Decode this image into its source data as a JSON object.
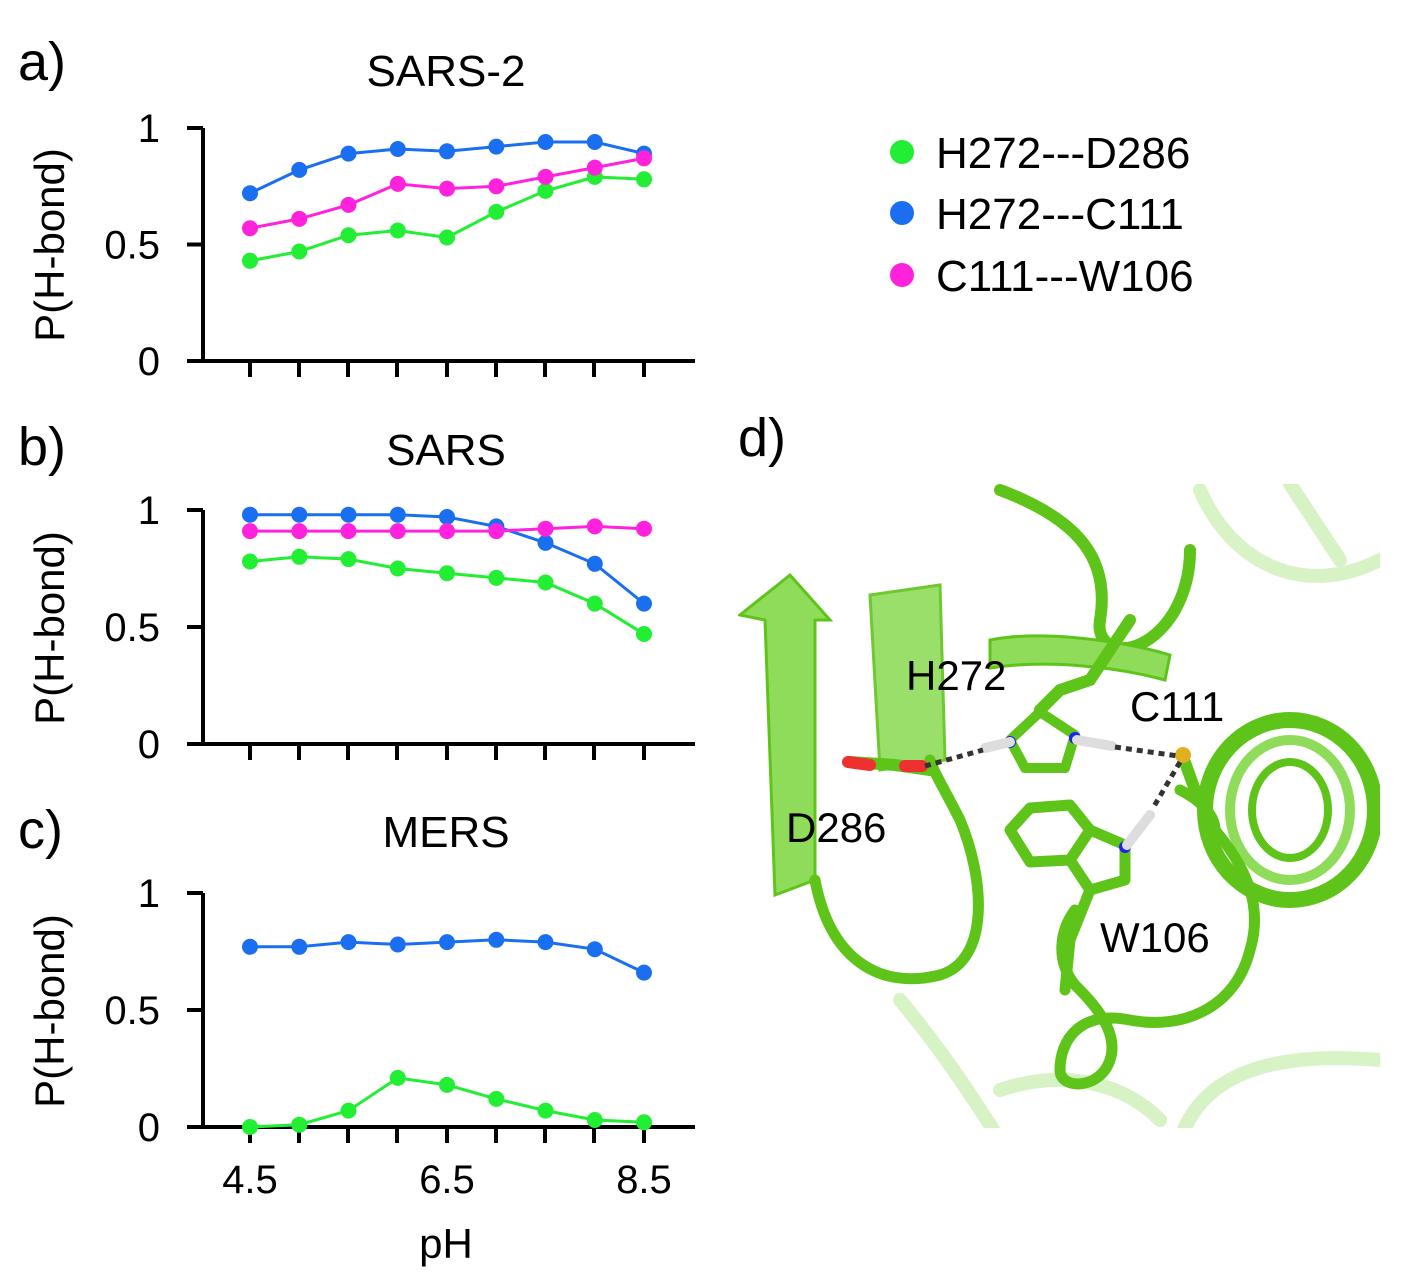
{
  "chart_data": [
    {
      "panel": "a)",
      "type": "line",
      "title": "SARS-2",
      "ylabel": "P(H-bond)",
      "xlabel": "",
      "ylim": [
        0,
        1
      ],
      "yticks": [
        0,
        0.5,
        1
      ],
      "ytick_labels": [
        "0",
        "0.5",
        "1"
      ],
      "xlim": [
        4.5,
        8.5
      ],
      "x": [
        4.5,
        5.0,
        5.5,
        6.0,
        6.5,
        7.0,
        7.5,
        8.0,
        8.5
      ],
      "series": [
        {
          "key": "hd",
          "values": [
            0.43,
            0.47,
            0.54,
            0.56,
            0.53,
            0.64,
            0.73,
            0.79,
            0.78
          ]
        },
        {
          "key": "hc",
          "values": [
            0.72,
            0.82,
            0.89,
            0.91,
            0.9,
            0.92,
            0.94,
            0.94,
            0.89
          ]
        },
        {
          "key": "cw",
          "values": [
            0.57,
            0.61,
            0.67,
            0.76,
            0.74,
            0.75,
            0.79,
            0.83,
            0.87
          ]
        }
      ]
    },
    {
      "panel": "b)",
      "type": "line",
      "title": "SARS",
      "ylabel": "P(H-bond)",
      "xlabel": "",
      "ylim": [
        0,
        1
      ],
      "yticks": [
        0,
        0.5,
        1
      ],
      "ytick_labels": [
        "0",
        "0.5",
        "1"
      ],
      "xlim": [
        4.5,
        8.5
      ],
      "x": [
        4.5,
        5.0,
        5.5,
        6.0,
        6.5,
        7.0,
        7.5,
        8.0,
        8.5
      ],
      "series": [
        {
          "key": "hd",
          "values": [
            0.78,
            0.8,
            0.79,
            0.75,
            0.73,
            0.71,
            0.69,
            0.6,
            0.47
          ]
        },
        {
          "key": "hc",
          "values": [
            0.98,
            0.98,
            0.98,
            0.98,
            0.97,
            0.93,
            0.86,
            0.77,
            0.6
          ]
        },
        {
          "key": "cw",
          "values": [
            0.91,
            0.91,
            0.91,
            0.91,
            0.91,
            0.91,
            0.92,
            0.93,
            0.92
          ]
        }
      ]
    },
    {
      "panel": "c)",
      "type": "line",
      "title": "MERS",
      "ylabel": "P(H-bond)",
      "xlabel": "pH",
      "ylim": [
        0,
        1
      ],
      "yticks": [
        0,
        0.5,
        1
      ],
      "ytick_labels": [
        "0",
        "0.5",
        "1"
      ],
      "xlim": [
        4.5,
        8.5
      ],
      "x": [
        4.5,
        5.0,
        5.5,
        6.0,
        6.5,
        7.0,
        7.5,
        8.0,
        8.5
      ],
      "xtick_labels": [
        "4.5",
        "6.5",
        "8.5"
      ],
      "series": [
        {
          "key": "hd",
          "values": [
            0.0,
            0.01,
            0.07,
            0.21,
            0.18,
            0.12,
            0.07,
            0.03,
            0.02
          ]
        },
        {
          "key": "hc",
          "values": [
            0.77,
            0.77,
            0.79,
            0.78,
            0.79,
            0.8,
            0.79,
            0.76,
            0.66
          ]
        }
      ]
    }
  ],
  "legend": [
    {
      "key": "hd",
      "label": "H272---D286",
      "color": "#22ee33"
    },
    {
      "key": "hc",
      "label": "H272---C111",
      "color": "#1a6ff0"
    },
    {
      "key": "cw",
      "label": "C111---W106",
      "color": "#ff22dd"
    }
  ],
  "structure_panel": {
    "letter": "d)",
    "labels": {
      "h272": "H272",
      "c111": "C111",
      "d286": "D286",
      "w106": "W106"
    },
    "colors": {
      "protein": "#5fc41a",
      "protein_light": "#8fdc5a",
      "nitrogen": "#2020ee",
      "oxygen": "#ee3030",
      "sulfur": "#e0b020"
    }
  }
}
